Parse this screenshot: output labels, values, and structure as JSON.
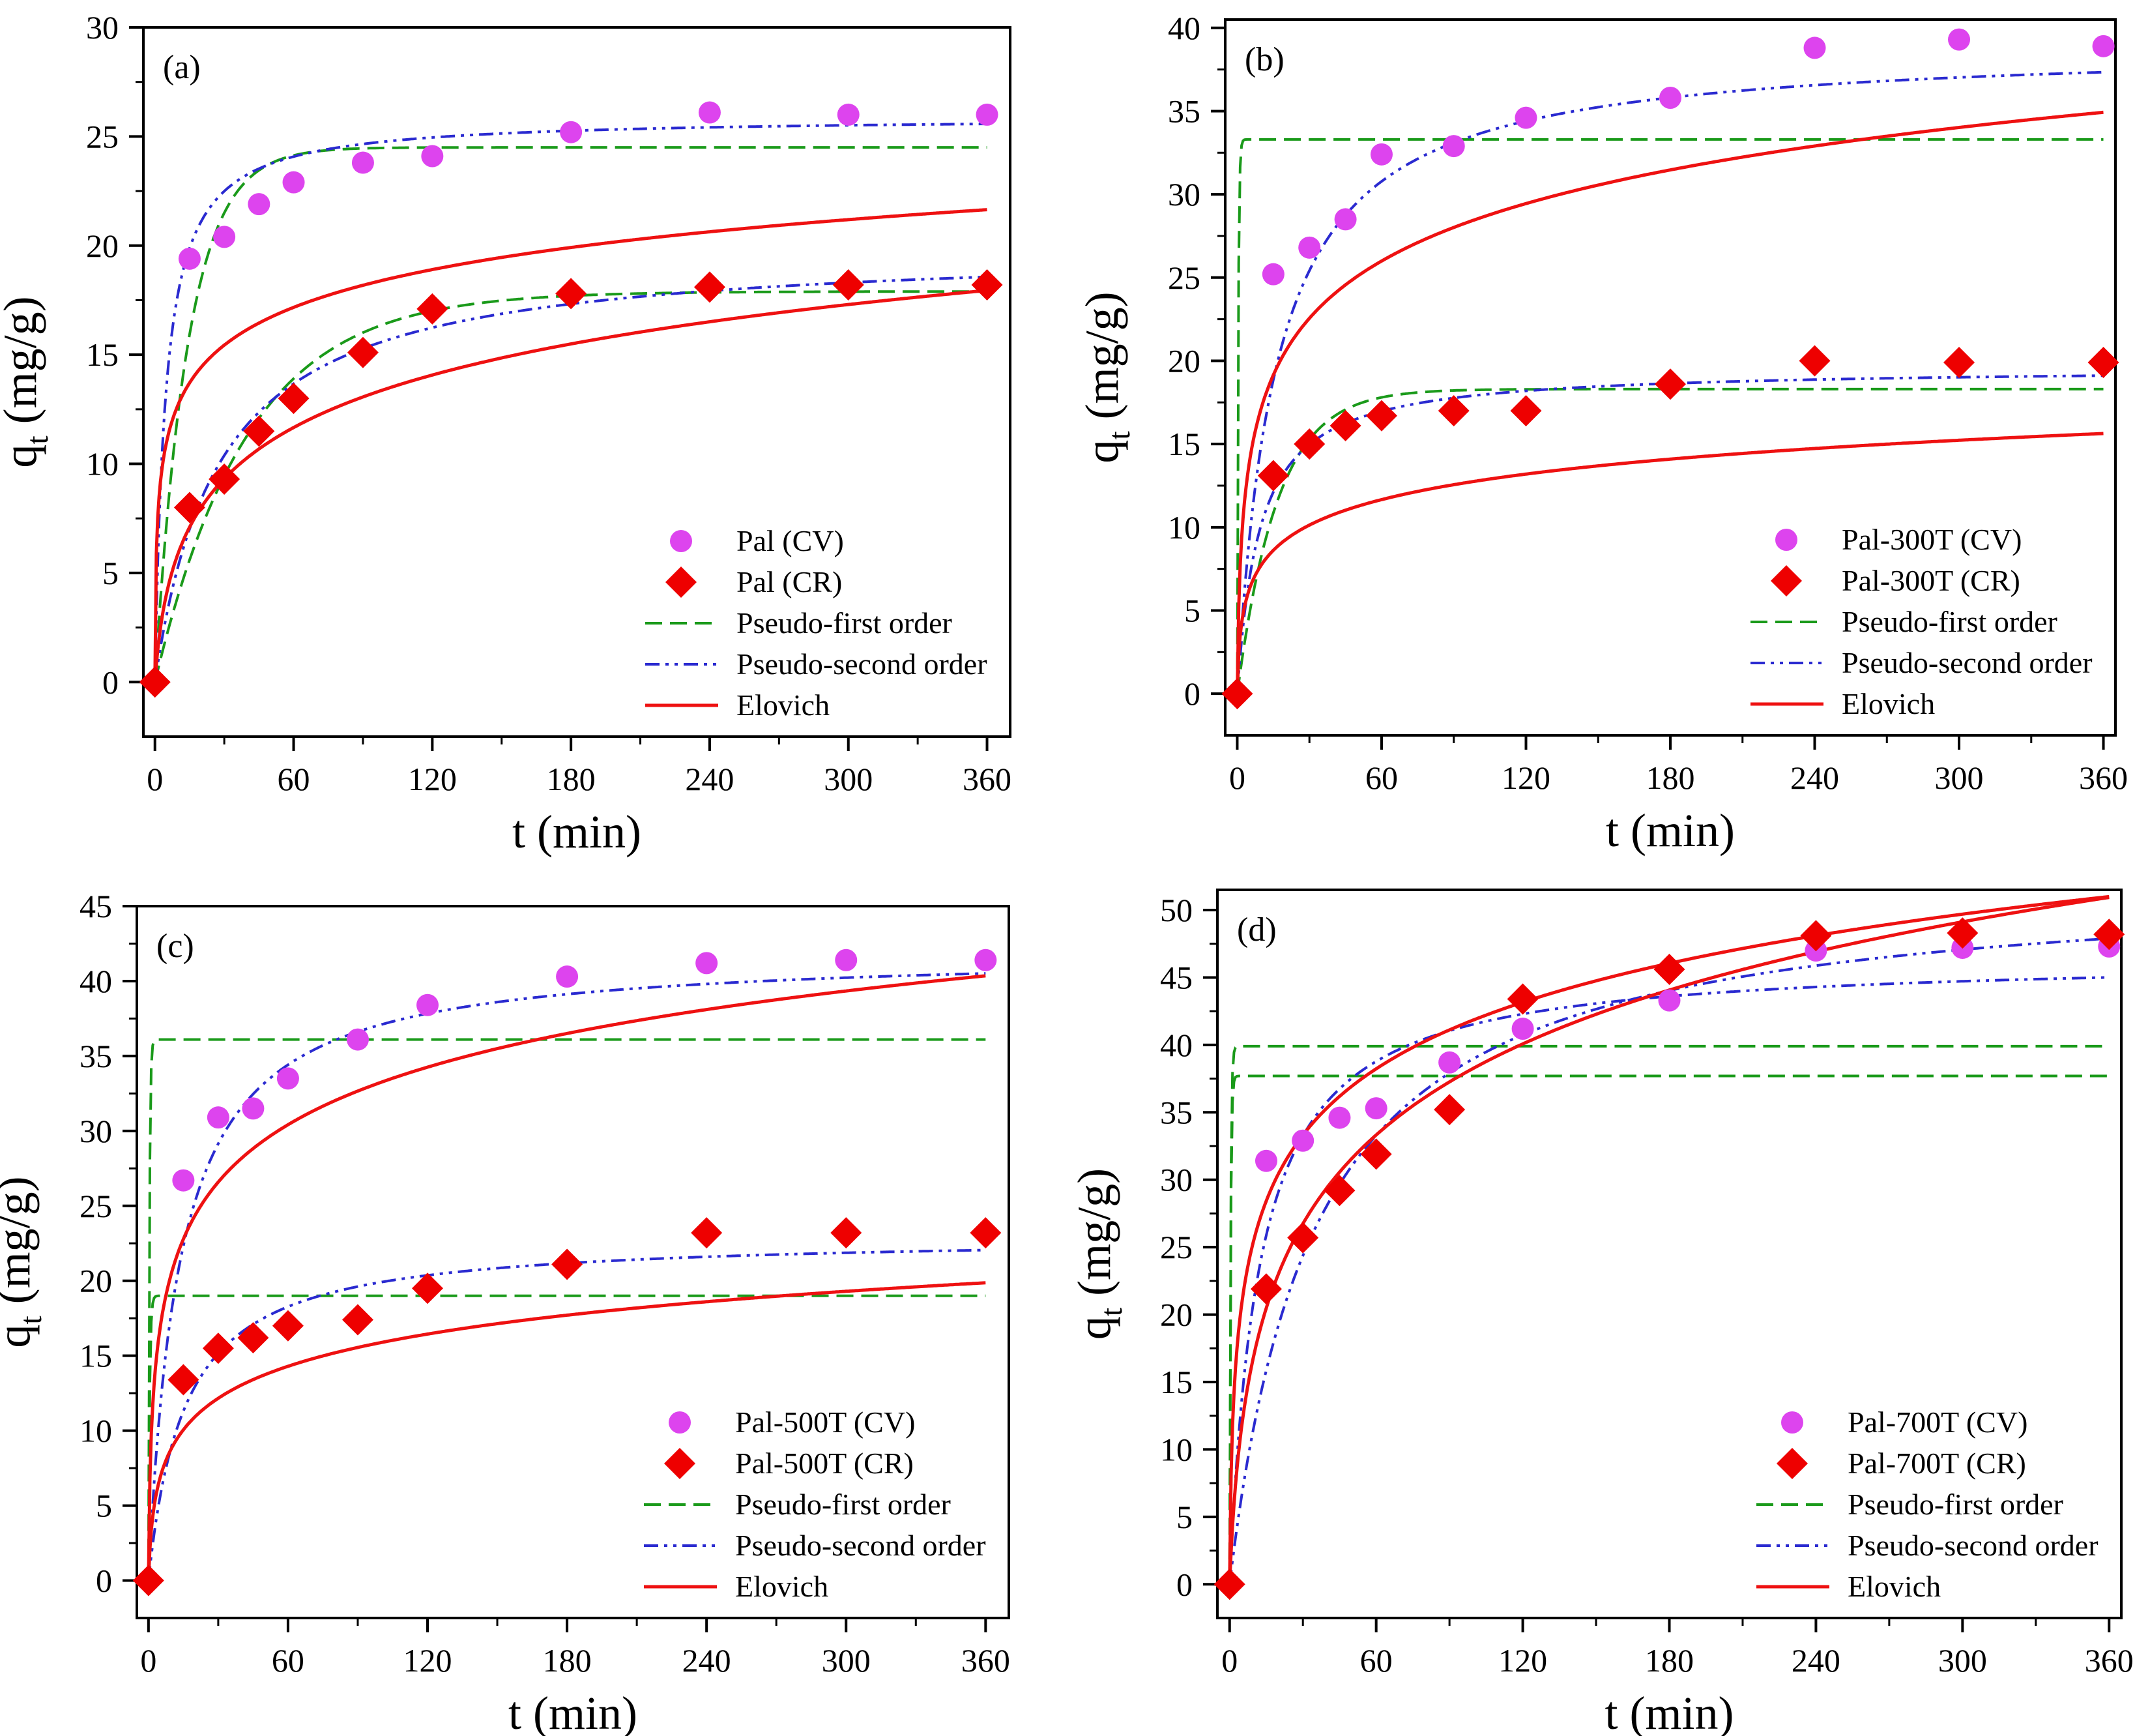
{
  "chart_data": [
    {
      "type": "scatter",
      "panel_label": "(a)",
      "xlabel": "t (min)",
      "ylabel_main": "q",
      "ylabel_sub": "t",
      "ylabel_unit": " (mg/g)",
      "xlim": [
        -5,
        370
      ],
      "ylim": [
        -2.5,
        30
      ],
      "xticks": [
        "0",
        "60",
        "120",
        "180",
        "240",
        "300",
        "360"
      ],
      "xtick_values": [
        0,
        60,
        120,
        180,
        240,
        300,
        360
      ],
      "yticks": [
        "0",
        "5",
        "10",
        "15",
        "20",
        "25",
        "30"
      ],
      "ytick_values": [
        0,
        5,
        10,
        15,
        20,
        25,
        30
      ],
      "legend": {
        "position": "bottom-right",
        "entries": [
          "Pal (CV)",
          "Pal (CR)",
          "Pseudo-first order",
          "Pseudo-second order",
          "Elovich"
        ]
      },
      "x": [
        0,
        15,
        30,
        45,
        60,
        90,
        120,
        180,
        240,
        300,
        360
      ],
      "series": [
        {
          "name": "Pal (CV)",
          "marker": "circle",
          "color": "#dd44ee",
          "values": [
            0,
            19.4,
            20.4,
            21.9,
            22.9,
            23.8,
            24.1,
            25.2,
            26.1,
            26.0,
            26.0
          ]
        },
        {
          "name": "Pal (CR)",
          "marker": "diamond",
          "color": "#ee0000",
          "values": [
            0,
            8.0,
            9.3,
            11.5,
            13.0,
            15.1,
            17.1,
            17.8,
            18.1,
            18.2,
            18.2
          ]
        }
      ],
      "fits": [
        {
          "name": "Pseudo-first order",
          "style": "dash",
          "color": "#1a9a1a",
          "model": "pfo",
          "qe": 24.5,
          "k": 0.07
        },
        {
          "name": "Pseudo-first order",
          "style": "dash",
          "color": "#1a9a1a",
          "model": "pfo",
          "qe": 17.9,
          "k": 0.025
        },
        {
          "name": "Pseudo-second order",
          "style": "dashdotdot",
          "color": "#2a2ad0",
          "model": "pso",
          "qe": 25.9,
          "k": 0.0085
        },
        {
          "name": "Pseudo-second order",
          "style": "dashdotdot",
          "color": "#2a2ad0",
          "model": "pso",
          "qe": 20.0,
          "k": 0.0018
        },
        {
          "name": "Elovich",
          "style": "solid",
          "color": "#ee1111",
          "model": "elovich",
          "a": 40,
          "b": 0.4
        },
        {
          "name": "Elovich",
          "style": "solid",
          "color": "#ee1111",
          "model": "elovich",
          "a": 1.5,
          "b": 0.28
        }
      ]
    },
    {
      "type": "scatter",
      "panel_label": "(b)",
      "xlabel": "t (min)",
      "ylabel_main": "q",
      "ylabel_sub": "t",
      "ylabel_unit": " (mg/g)",
      "xlim": [
        -5,
        365
      ],
      "ylim": [
        -2.5,
        40.5
      ],
      "xticks": [
        "0",
        "60",
        "120",
        "180",
        "240",
        "300",
        "360"
      ],
      "xtick_values": [
        0,
        60,
        120,
        180,
        240,
        300,
        360
      ],
      "yticks": [
        "0",
        "5",
        "10",
        "15",
        "20",
        "25",
        "30",
        "35",
        "40"
      ],
      "ytick_values": [
        0,
        5,
        10,
        15,
        20,
        25,
        30,
        35,
        40
      ],
      "legend": {
        "position": "bottom-right",
        "entries": [
          "Pal-300T (CV)",
          "Pal-300T (CR)",
          "Pseudo-first order",
          "Pseudo-second order",
          "Elovich"
        ]
      },
      "x": [
        0,
        15,
        30,
        45,
        60,
        90,
        120,
        180,
        240,
        300,
        360
      ],
      "series": [
        {
          "name": "Pal-300T (CV)",
          "marker": "circle",
          "color": "#dd44ee",
          "values": [
            0,
            25.2,
            26.8,
            28.5,
            32.4,
            32.9,
            34.6,
            35.8,
            38.8,
            39.3,
            38.9
          ]
        },
        {
          "name": "Pal-300T (CR)",
          "marker": "diamond",
          "color": "#ee0000",
          "values": [
            0,
            13.1,
            15.0,
            16.1,
            16.7,
            17.0,
            17.0,
            18.6,
            20.0,
            19.9,
            19.9
          ]
        }
      ],
      "fits": [
        {
          "name": "Pseudo-first order",
          "style": "dash",
          "color": "#1a9a1a",
          "model": "pfo",
          "qe": 33.3,
          "k": 2.5
        },
        {
          "name": "Pseudo-first order",
          "style": "dash",
          "color": "#1a9a1a",
          "model": "pfo",
          "qe": 18.3,
          "k": 0.06
        },
        {
          "name": "Pseudo-second order",
          "style": "dashdotdot",
          "color": "#2a2ad0",
          "model": "pso",
          "qe": 39.0,
          "k": 0.0016
        },
        {
          "name": "Pseudo-second order",
          "style": "dashdotdot",
          "color": "#2a2ad0",
          "model": "pso",
          "qe": 19.6,
          "k": 0.0055
        },
        {
          "name": "Elovich",
          "style": "solid",
          "color": "#ee1111",
          "model": "elovich",
          "a": 15,
          "b": 0.2
        },
        {
          "name": "Elovich",
          "style": "solid",
          "color": "#ee1111",
          "model": "elovich",
          "a": 7,
          "b": 0.45
        }
      ]
    },
    {
      "type": "scatter",
      "panel_label": "(c)",
      "xlabel": "t (min)",
      "ylabel_main": "q",
      "ylabel_sub": "t",
      "ylabel_unit": " (mg/g)",
      "xlim": [
        -5,
        370
      ],
      "ylim": [
        -2.5,
        45
      ],
      "xticks": [
        "0",
        "60",
        "120",
        "180",
        "240",
        "300",
        "360"
      ],
      "xtick_values": [
        0,
        60,
        120,
        180,
        240,
        300,
        360
      ],
      "yticks": [
        "0",
        "5",
        "10",
        "15",
        "20",
        "25",
        "30",
        "35",
        "40",
        "45"
      ],
      "ytick_values": [
        0,
        5,
        10,
        15,
        20,
        25,
        30,
        35,
        40,
        45
      ],
      "legend": {
        "position": "bottom-right",
        "entries": [
          "Pal-500T (CV)",
          "Pal-500T (CR)",
          "Pseudo-first order",
          "Pseudo-second order",
          "Elovich"
        ]
      },
      "x": [
        0,
        15,
        30,
        45,
        60,
        90,
        120,
        180,
        240,
        300,
        360
      ],
      "series": [
        {
          "name": "Pal-500T (CV)",
          "marker": "circle",
          "color": "#dd44ee",
          "values": [
            0,
            26.7,
            30.9,
            31.5,
            33.5,
            36.1,
            38.4,
            40.3,
            41.2,
            41.4,
            41.4
          ]
        },
        {
          "name": "Pal-500T (CR)",
          "marker": "diamond",
          "color": "#ee0000",
          "values": [
            0,
            13.4,
            15.5,
            16.2,
            17.0,
            17.4,
            19.5,
            21.1,
            23.2,
            23.2,
            23.2
          ]
        }
      ],
      "fits": [
        {
          "name": "Pseudo-first order",
          "style": "dash",
          "color": "#1a9a1a",
          "model": "pfo",
          "qe": 36.1,
          "k": 2.5
        },
        {
          "name": "Pseudo-first order",
          "style": "dash",
          "color": "#1a9a1a",
          "model": "pfo",
          "qe": 19.0,
          "k": 2.0
        },
        {
          "name": "Pseudo-second order",
          "style": "dashdotdot",
          "color": "#2a2ad0",
          "model": "pso",
          "qe": 42.0,
          "k": 0.0018
        },
        {
          "name": "Pseudo-second order",
          "style": "dashdotdot",
          "color": "#2a2ad0",
          "model": "pso",
          "qe": 23.0,
          "k": 0.0028
        },
        {
          "name": "Elovich",
          "style": "solid",
          "color": "#ee1111",
          "model": "elovich",
          "a": 22,
          "b": 0.18
        },
        {
          "name": "Elovich",
          "style": "solid",
          "color": "#ee1111",
          "model": "elovich",
          "a": 5,
          "b": 0.32
        }
      ]
    },
    {
      "type": "scatter",
      "panel_label": "(d)",
      "xlabel": "t (min)",
      "ylabel_main": "q",
      "ylabel_sub": "t",
      "ylabel_unit": " (mg/g)",
      "xlim": [
        -5,
        365
      ],
      "ylim": [
        -2.5,
        51.5
      ],
      "xticks": [
        "0",
        "60",
        "120",
        "180",
        "240",
        "300",
        "360"
      ],
      "xtick_values": [
        0,
        60,
        120,
        180,
        240,
        300,
        360
      ],
      "yticks": [
        "0",
        "5",
        "10",
        "15",
        "20",
        "25",
        "30",
        "35",
        "40",
        "45",
        "50"
      ],
      "ytick_values": [
        0,
        5,
        10,
        15,
        20,
        25,
        30,
        35,
        40,
        45,
        50
      ],
      "legend": {
        "position": "bottom-right",
        "entries": [
          "Pal-700T (CV)",
          "Pal-700T (CR)",
          "Pseudo-first order",
          "Pseudo-second order",
          "Elovich"
        ]
      },
      "x": [
        0,
        15,
        30,
        45,
        60,
        90,
        120,
        180,
        240,
        300,
        360
      ],
      "series": [
        {
          "name": "Pal-700T (CV)",
          "marker": "circle",
          "color": "#dd44ee",
          "values": [
            0,
            31.4,
            32.9,
            34.6,
            35.3,
            38.7,
            41.2,
            43.3,
            47.0,
            47.2,
            47.3
          ]
        },
        {
          "name": "Pal-700T (CR)",
          "marker": "diamond",
          "color": "#ee0000",
          "values": [
            0,
            21.9,
            25.7,
            29.2,
            31.9,
            35.2,
            43.4,
            45.6,
            48.1,
            48.3,
            48.2
          ]
        }
      ],
      "fits": [
        {
          "name": "Pseudo-first order",
          "style": "dash",
          "color": "#1a9a1a",
          "model": "pfo",
          "qe": 37.7,
          "k": 2.5
        },
        {
          "name": "Pseudo-first order",
          "style": "dash",
          "color": "#1a9a1a",
          "model": "pfo",
          "qe": 39.9,
          "k": 2.5
        },
        {
          "name": "Pseudo-second order",
          "style": "dashdotdot",
          "color": "#2a2ad0",
          "model": "pso",
          "qe": 46.5,
          "k": 0.0018
        },
        {
          "name": "Pseudo-second order",
          "style": "dashdotdot",
          "color": "#2a2ad0",
          "model": "pso",
          "qe": 52.5,
          "k": 0.00055
        },
        {
          "name": "Elovich",
          "style": "solid",
          "color": "#ee1111",
          "model": "elovich",
          "a": 25,
          "b": 0.14
        },
        {
          "name": "Elovich",
          "style": "solid",
          "color": "#ee1111",
          "model": "elovich",
          "a": 4.5,
          "b": 0.1
        }
      ]
    }
  ]
}
